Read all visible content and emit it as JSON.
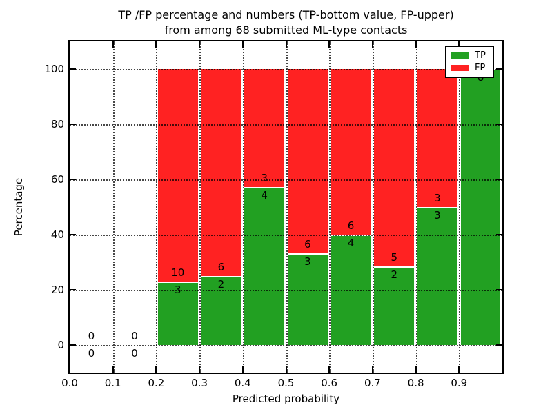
{
  "title": {
    "line1": "TP /FP percentage and numbers (TP-bottom value, FP-upper)",
    "line2": "from among 68 submitted ML-type contacts"
  },
  "axes": {
    "xlabel": "Predicted probability",
    "ylabel": "Percentage",
    "x_ticks": [
      {
        "label": "0.0",
        "value": 0.0
      },
      {
        "label": "0.1",
        "value": 0.1
      },
      {
        "label": "0.2",
        "value": 0.2
      },
      {
        "label": "0.3",
        "value": 0.3
      },
      {
        "label": "0.4",
        "value": 0.4
      },
      {
        "label": "0.5",
        "value": 0.5
      },
      {
        "label": "0.6",
        "value": 0.6
      },
      {
        "label": "0.7",
        "value": 0.7
      },
      {
        "label": "0.8",
        "value": 0.8
      },
      {
        "label": "0.9",
        "value": 0.9
      }
    ],
    "y_ticks": [
      {
        "label": "0",
        "value": 0
      },
      {
        "label": "20",
        "value": 20
      },
      {
        "label": "40",
        "value": 40
      },
      {
        "label": "60",
        "value": 60
      },
      {
        "label": "80",
        "value": 80
      },
      {
        "label": "100",
        "value": 100
      }
    ]
  },
  "legend": {
    "items": [
      {
        "label": "TP",
        "color": "#22a022"
      },
      {
        "label": "FP",
        "color": "#ff2222"
      }
    ]
  },
  "chart_data": {
    "type": "bar",
    "stacked": true,
    "title": "TP /FP percentage and numbers (TP-bottom value, FP-upper)\nfrom among 68 submitted ML-type contacts",
    "xlabel": "Predicted probability",
    "ylabel": "Percentage",
    "xlim": [
      0.0,
      1.0
    ],
    "ylim": [
      -10,
      110
    ],
    "grid": "dotted, drawn above bars",
    "legend_position": "upper right",
    "total_contacts": 68,
    "bin_width": 0.1,
    "colors": {
      "tp": "#22a022",
      "fp": "#ff2222",
      "bar_edge": "#ffffff"
    },
    "bins": [
      {
        "x0": 0.0,
        "x1": 0.1,
        "tp": 0,
        "fp": 0,
        "tp_pct": 0,
        "fp_pct": 0,
        "show_fp_label": true
      },
      {
        "x0": 0.1,
        "x1": 0.2,
        "tp": 0,
        "fp": 0,
        "tp_pct": 0,
        "fp_pct": 0,
        "show_fp_label": true
      },
      {
        "x0": 0.2,
        "x1": 0.3,
        "tp": 3,
        "fp": 10,
        "tp_pct": 23.08,
        "fp_pct": 76.92,
        "show_fp_label": true
      },
      {
        "x0": 0.3,
        "x1": 0.4,
        "tp": 2,
        "fp": 6,
        "tp_pct": 25.0,
        "fp_pct": 75.0,
        "show_fp_label": true
      },
      {
        "x0": 0.4,
        "x1": 0.5,
        "tp": 4,
        "fp": 3,
        "tp_pct": 57.14,
        "fp_pct": 42.86,
        "show_fp_label": true
      },
      {
        "x0": 0.5,
        "x1": 0.6,
        "tp": 3,
        "fp": 6,
        "tp_pct": 33.33,
        "fp_pct": 66.67,
        "show_fp_label": true
      },
      {
        "x0": 0.6,
        "x1": 0.7,
        "tp": 4,
        "fp": 6,
        "tp_pct": 40.0,
        "fp_pct": 60.0,
        "show_fp_label": true
      },
      {
        "x0": 0.7,
        "x1": 0.8,
        "tp": 2,
        "fp": 5,
        "tp_pct": 28.57,
        "fp_pct": 71.43,
        "show_fp_label": true
      },
      {
        "x0": 0.8,
        "x1": 0.9,
        "tp": 3,
        "fp": 3,
        "tp_pct": 50.0,
        "fp_pct": 50.0,
        "show_fp_label": true
      },
      {
        "x0": 0.9,
        "x1": 1.0,
        "tp": 8,
        "fp": 0,
        "tp_pct": 100.0,
        "fp_pct": 0.0,
        "show_fp_label": false
      }
    ]
  }
}
